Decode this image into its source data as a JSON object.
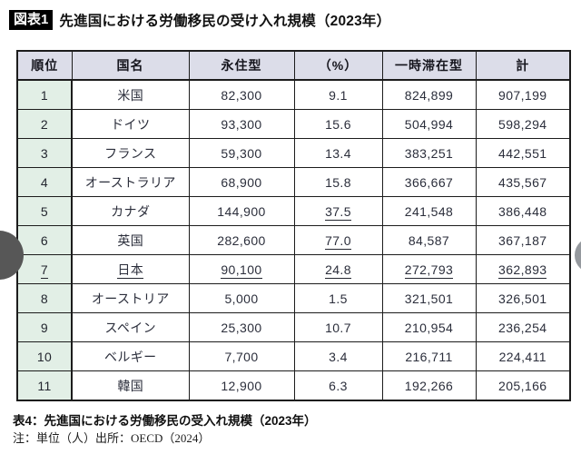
{
  "title": {
    "badge": "図表1",
    "text": "先進国における労働移民の受け入れ規模（2023年）"
  },
  "table": {
    "headers": [
      "順位",
      "国名",
      "永住型",
      "（%）",
      "一時滞在型",
      "計"
    ],
    "rows": [
      {
        "rank": "1",
        "country": "米国",
        "permanent": "82,300",
        "percent": "9.1",
        "temporary": "824,899",
        "total": "907,199",
        "underline": []
      },
      {
        "rank": "2",
        "country": "ドイツ",
        "permanent": "93,300",
        "percent": "15.6",
        "temporary": "504,994",
        "total": "598,294",
        "underline": []
      },
      {
        "rank": "3",
        "country": "フランス",
        "permanent": "59,300",
        "percent": "13.4",
        "temporary": "383,251",
        "total": "442,551",
        "underline": []
      },
      {
        "rank": "4",
        "country": "オーストラリア",
        "permanent": "68,900",
        "percent": "15.8",
        "temporary": "366,667",
        "total": "435,567",
        "underline": []
      },
      {
        "rank": "5",
        "country": "カナダ",
        "permanent": "144,900",
        "percent": "37.5",
        "temporary": "241,548",
        "total": "386,448",
        "underline": [
          "percent"
        ]
      },
      {
        "rank": "6",
        "country": "英国",
        "permanent": "282,600",
        "percent": "77.0",
        "temporary": "84,587",
        "total": "367,187",
        "underline": [
          "percent"
        ]
      },
      {
        "rank": "7",
        "country": "日本",
        "permanent": "90,100",
        "percent": "24.8",
        "temporary": "272,793",
        "total": "362,893",
        "underline": [
          "rank",
          "country",
          "permanent",
          "percent",
          "temporary",
          "total"
        ]
      },
      {
        "rank": "8",
        "country": "オーストリア",
        "permanent": "5,000",
        "percent": "1.5",
        "temporary": "321,501",
        "total": "326,501",
        "underline": []
      },
      {
        "rank": "9",
        "country": "スペイン",
        "permanent": "25,300",
        "percent": "10.7",
        "temporary": "210,954",
        "total": "236,254",
        "underline": []
      },
      {
        "rank": "10",
        "country": "ベルギー",
        "permanent": "7,700",
        "percent": "3.4",
        "temporary": "216,711",
        "total": "224,411",
        "underline": []
      },
      {
        "rank": "11",
        "country": "韓国",
        "permanent": "12,900",
        "percent": "6.3",
        "temporary": "192,266",
        "total": "205,166",
        "underline": []
      }
    ]
  },
  "footer": {
    "caption": "表4：先進国における労働移民の受入れ規模（2023年）",
    "note": "注：単位（人）出所：OECD（2024）"
  },
  "colors": {
    "header_bg": "#dcdde9",
    "rank_column_bg": "#e2efe6",
    "border": "#1c1c1c",
    "body_text": "#2b2e3b",
    "badge_bg": "#000000",
    "badge_text": "#ffffff",
    "prev_button": "#575757",
    "next_button": "#95999e"
  },
  "chart_data": {
    "type": "table",
    "title": "先進国における労働移民の受け入れ規模（2023年）",
    "columns": [
      "順位",
      "国名",
      "永住型",
      "（%）",
      "一時滞在型",
      "計"
    ],
    "rows": [
      [
        1,
        "米国",
        82300,
        9.1,
        824899,
        907199
      ],
      [
        2,
        "ドイツ",
        93300,
        15.6,
        504994,
        598294
      ],
      [
        3,
        "フランス",
        59300,
        13.4,
        383251,
        442551
      ],
      [
        4,
        "オーストラリア",
        68900,
        15.8,
        366667,
        435567
      ],
      [
        5,
        "カナダ",
        144900,
        37.5,
        241548,
        386448
      ],
      [
        6,
        "英国",
        282600,
        77.0,
        84587,
        367187
      ],
      [
        7,
        "日本",
        90100,
        24.8,
        272793,
        362893
      ],
      [
        8,
        "オーストリア",
        5000,
        1.5,
        321501,
        326501
      ],
      [
        9,
        "スペイン",
        25300,
        10.7,
        210954,
        236254
      ],
      [
        10,
        "ベルギー",
        7700,
        3.4,
        216711,
        224411
      ],
      [
        11,
        "韓国",
        12900,
        6.3,
        192266,
        205166
      ]
    ],
    "unit": "人",
    "source": "OECD（2024）"
  }
}
